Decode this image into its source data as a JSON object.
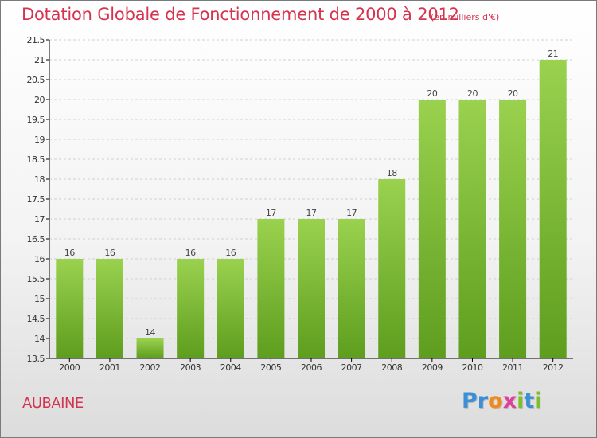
{
  "header": {
    "title": "Dotation Globale de Fonctionnement de 2000 à 2012",
    "subtitle": "(en milliers d'€)"
  },
  "footer": {
    "commune": "AUBAINE",
    "logo_letters": [
      {
        "char": "P",
        "color": "#3b8fd6"
      },
      {
        "char": "r",
        "color": "#3b8fd6"
      },
      {
        "char": "o",
        "color": "#f08a1c"
      },
      {
        "char": "x",
        "color": "#e0409a"
      },
      {
        "char": "i",
        "color": "#7cbf2a"
      },
      {
        "char": "t",
        "color": "#3b8fd6"
      },
      {
        "char": "i",
        "color": "#7cbf2a"
      }
    ]
  },
  "colors": {
    "title": "#d6334f",
    "bar_top": "#9ad24f",
    "bar_bottom": "#5e9d1e",
    "grid": "#d0d0d0",
    "axis": "#000000"
  },
  "chart_data": {
    "type": "bar",
    "title": "Dotation Globale de Fonctionnement de 2000 à 2012",
    "subtitle": "(en milliers d'€)",
    "categories": [
      "2000",
      "2001",
      "2002",
      "2003",
      "2004",
      "2005",
      "2006",
      "2007",
      "2008",
      "2009",
      "2010",
      "2011",
      "2012"
    ],
    "values": [
      16,
      16,
      14,
      16,
      16,
      17,
      17,
      17,
      18,
      20,
      20,
      20,
      21
    ],
    "data_labels": [
      "16",
      "16",
      "14",
      "16",
      "16",
      "17",
      "17",
      "17",
      "18",
      "20",
      "20",
      "20",
      "21"
    ],
    "ylim": [
      13.5,
      21.5
    ],
    "yticks": [
      13.5,
      14,
      14.5,
      15,
      15.5,
      16,
      16.5,
      17,
      17.5,
      18,
      18.5,
      19,
      19.5,
      20,
      20.5,
      21,
      21.5
    ],
    "ytick_labels": [
      "13.5",
      "14",
      "14.5",
      "15",
      "15.5",
      "16",
      "16.5",
      "17",
      "17.5",
      "18",
      "18.5",
      "19",
      "19.5",
      "20",
      "20.5",
      "21",
      "21.5"
    ],
    "grid": true,
    "legend": "none"
  }
}
